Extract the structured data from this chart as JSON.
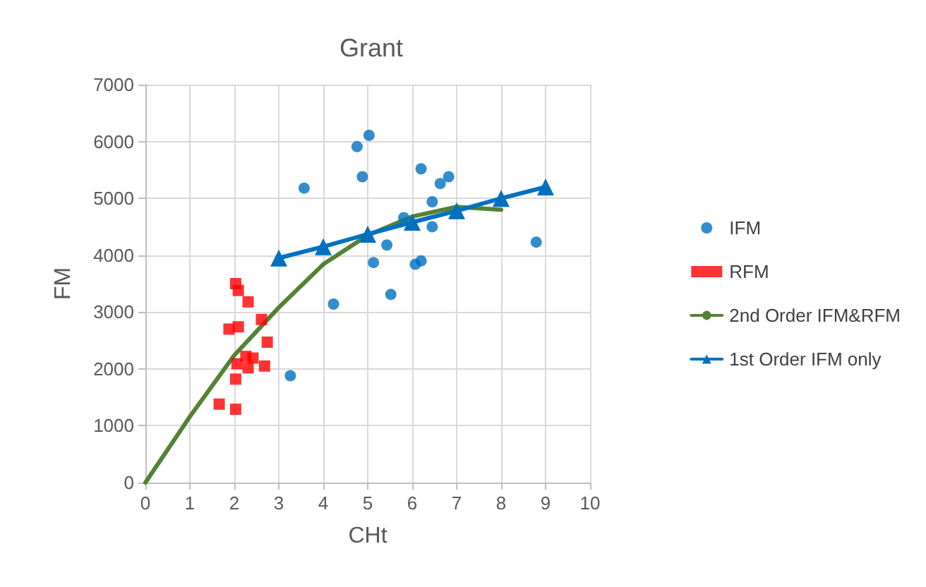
{
  "chart_data": {
    "type": "scatter",
    "title": "Grant",
    "xlabel": "CHt",
    "ylabel": "FM",
    "xlim": [
      0,
      10
    ],
    "xticks": [
      0,
      1,
      2,
      3,
      4,
      5,
      6,
      7,
      8,
      9,
      10
    ],
    "ylim": [
      0,
      7000
    ],
    "yticks": [
      0,
      1000,
      2000,
      3000,
      4000,
      5000,
      6000,
      7000
    ],
    "grid": true,
    "legend": "right",
    "series": [
      {
        "name": "IFM",
        "marker": "circle",
        "color": "#0070c0",
        "x": [
          3.57,
          4.23,
          3.26,
          4.76,
          5.03,
          4.88,
          5.13,
          5.43,
          5.52,
          5.81,
          6.2,
          6.07,
          6.2,
          6.45,
          6.45,
          6.63,
          6.82,
          8.79
        ],
        "values": [
          5180,
          3140,
          1880,
          5910,
          6110,
          5380,
          3870,
          4180,
          3310,
          4660,
          5520,
          3840,
          3900,
          4940,
          4500,
          5260,
          5380,
          4230
        ]
      },
      {
        "name": "RFM",
        "marker": "square",
        "color": "#ff0000",
        "x": [
          2.03,
          2.09,
          2.31,
          2.61,
          1.88,
          2.09,
          2.74,
          2.26,
          2.42,
          2.06,
          2.19,
          2.31,
          2.68,
          2.03,
          1.66,
          2.03
        ],
        "values": [
          3500,
          3380,
          3180,
          2870,
          2700,
          2740,
          2470,
          2220,
          2190,
          2090,
          null,
          2020,
          2050,
          1820,
          1380,
          1290
        ]
      },
      {
        "name": "2nd Order IFM&RFM",
        "type": "line",
        "marker": "none",
        "color": "#548235",
        "x": [
          0,
          1,
          2,
          3,
          4,
          5,
          6,
          7,
          8
        ],
        "values": [
          0,
          1160,
          2240,
          3080,
          3840,
          4350,
          4680,
          4850,
          4800
        ]
      },
      {
        "name": "1st Order IFM only",
        "type": "line",
        "marker": "triangle",
        "color": "#0070c0",
        "x": [
          3,
          4,
          5,
          6,
          7,
          8,
          9
        ],
        "values": [
          3950,
          4150,
          4370,
          4580,
          4780,
          5000,
          5200
        ]
      }
    ]
  }
}
